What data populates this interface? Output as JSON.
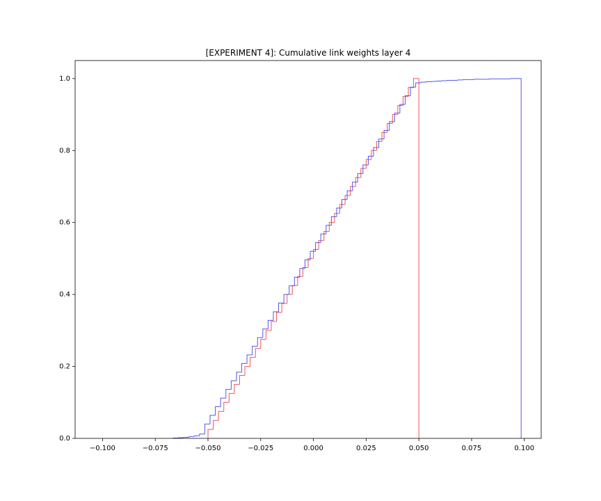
{
  "chart_data": {
    "type": "step-histogram",
    "title": "[EXPERIMENT 4]: Cumulative link weights layer 4",
    "xlim": [
      -0.113,
      0.108
    ],
    "ylim": [
      0,
      1.05
    ],
    "xticks": [
      {
        "value": -0.1,
        "label": "−0.100"
      },
      {
        "value": -0.075,
        "label": "−0.075"
      },
      {
        "value": -0.05,
        "label": "−0.050"
      },
      {
        "value": -0.025,
        "label": "−0.025"
      },
      {
        "value": 0,
        "label": "0.000"
      },
      {
        "value": 0.025,
        "label": "0.025"
      },
      {
        "value": 0.05,
        "label": "0.050"
      },
      {
        "value": 0.075,
        "label": "0.075"
      },
      {
        "value": 0.1,
        "label": "0.100"
      }
    ],
    "yticks": [
      {
        "value": 0,
        "label": "0.0"
      },
      {
        "value": 0.2,
        "label": "0.2"
      },
      {
        "value": 0.4,
        "label": "0.4"
      },
      {
        "value": 0.6,
        "label": "0.6"
      },
      {
        "value": 0.8,
        "label": "0.8"
      },
      {
        "value": 1,
        "label": "1.0"
      }
    ],
    "series": [
      {
        "color": "#ee5555",
        "bins": [
          -0.05,
          -0.0475,
          -0.045,
          -0.0425,
          -0.04,
          -0.0375,
          -0.035,
          -0.0325,
          -0.03,
          -0.0275,
          -0.025,
          -0.0225,
          -0.02,
          -0.0175,
          -0.015,
          -0.0125,
          -0.01,
          -0.0075,
          -0.005,
          -0.0025,
          0,
          0.0025,
          0.005,
          0.0075,
          0.01,
          0.0125,
          0.015,
          0.0175,
          0.02,
          0.0225,
          0.025,
          0.0275,
          0.03,
          0.0325,
          0.035,
          0.0375,
          0.04,
          0.0425,
          0.045,
          0.0475,
          0.05
        ],
        "values": [
          0.025,
          0.05,
          0.075,
          0.1,
          0.125,
          0.15,
          0.175,
          0.2,
          0.225,
          0.25,
          0.275,
          0.3,
          0.325,
          0.35,
          0.375,
          0.4,
          0.425,
          0.45,
          0.475,
          0.5,
          0.525,
          0.55,
          0.575,
          0.6,
          0.625,
          0.65,
          0.675,
          0.7,
          0.725,
          0.75,
          0.775,
          0.8,
          0.825,
          0.85,
          0.875,
          0.9,
          0.925,
          0.95,
          0.975,
          1.0
        ]
      },
      {
        "color": "#5555ee",
        "bins": [
          -0.0665,
          -0.064,
          -0.0615,
          -0.059,
          -0.0565,
          -0.054,
          -0.0515,
          -0.049,
          -0.0465,
          -0.044,
          -0.0415,
          -0.039,
          -0.0365,
          -0.034,
          -0.0315,
          -0.029,
          -0.0265,
          -0.024,
          -0.0215,
          -0.019,
          -0.0165,
          -0.014,
          -0.0115,
          -0.009,
          -0.0065,
          -0.004,
          -0.0015,
          0.001,
          0.0035,
          0.006,
          0.0085,
          0.011,
          0.0135,
          0.016,
          0.0185,
          0.021,
          0.0235,
          0.026,
          0.0285,
          0.031,
          0.0335,
          0.036,
          0.0385,
          0.041,
          0.0435,
          0.046,
          0.0485,
          0.051,
          0.0535,
          0.056,
          0.0585,
          0.061,
          0.0635,
          0.066,
          0.0685,
          0.071,
          0.0735,
          0.076,
          0.0785,
          0.081,
          0.0835,
          0.086,
          0.0885,
          0.091,
          0.0935,
          0.096,
          0.0985
        ],
        "values": [
          0.001,
          0.002,
          0.003,
          0.005,
          0.007,
          0.012,
          0.04,
          0.064,
          0.088,
          0.112,
          0.136,
          0.16,
          0.184,
          0.208,
          0.232,
          0.256,
          0.28,
          0.304,
          0.328,
          0.352,
          0.376,
          0.4,
          0.424,
          0.448,
          0.472,
          0.496,
          0.52,
          0.544,
          0.568,
          0.592,
          0.616,
          0.64,
          0.664,
          0.688,
          0.712,
          0.736,
          0.76,
          0.784,
          0.808,
          0.832,
          0.856,
          0.88,
          0.904,
          0.928,
          0.952,
          0.976,
          0.988,
          0.99,
          0.991,
          0.992,
          0.993,
          0.994,
          0.995,
          0.995,
          0.996,
          0.997,
          0.997,
          0.998,
          0.998,
          0.998,
          0.999,
          0.999,
          0.999,
          0.999,
          1.0,
          1.0
        ]
      }
    ]
  }
}
